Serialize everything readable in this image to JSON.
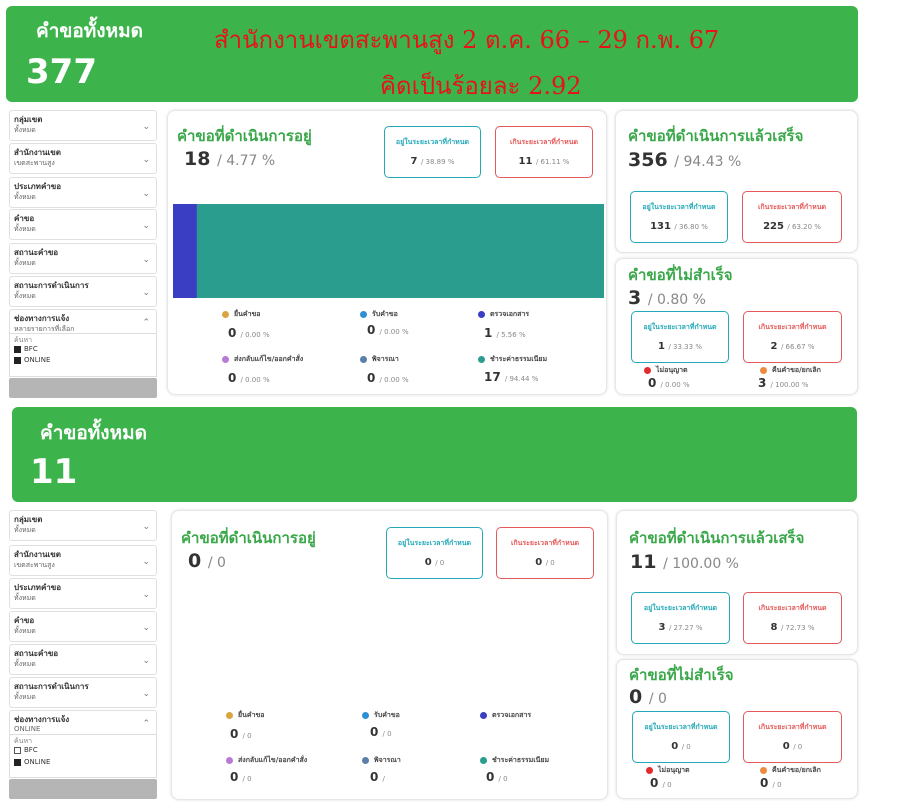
{
  "section1": {
    "banner": {
      "label": "คำขอทั้งหมด",
      "count": "377"
    },
    "headline": {
      "line1": "สำนักงานเขตสะพานสูง 2 ต.ค. 66 – 29 ก.พ. 67",
      "line2": "คิดเป็นร้อยละ 2.92"
    },
    "filters": [
      {
        "label": "กลุ่มเขต",
        "value": "ทั้งหมด"
      },
      {
        "label": "สำนักงานเขต",
        "value": "เขตสะพานสูง"
      },
      {
        "label": "ประเภทคำขอ",
        "value": "ทั้งหมด"
      },
      {
        "label": "คำขอ",
        "value": "ทั้งหมด"
      },
      {
        "label": "สถานะคำขอ",
        "value": "ทั้งหมด"
      },
      {
        "label": "สถานะการดำเนินการ",
        "value": "ทั้งหมด"
      }
    ],
    "channel": {
      "label": "ช่องทางการแจ้ง",
      "value": "หลายรายการที่เลือก",
      "search_placeholder": "ค้นหา",
      "options": [
        {
          "label": "BFC",
          "checked": true
        },
        {
          "label": "ONLINE",
          "checked": true
        }
      ]
    },
    "in_progress": {
      "title": "คำขอที่ดำเนินการอยู่",
      "count": "18",
      "pct": "/ 4.77 %",
      "kpi_in": {
        "label": "อยู่ในระยะเวลาที่กำหนด",
        "value": "7",
        "pct": "/ 38.89 %"
      },
      "kpi_over": {
        "label": "เกินระยะเวลาที่กำหนด",
        "value": "11",
        "pct": "/ 61.11 %"
      },
      "chart_data": {
        "type": "bar",
        "orientation": "horizontal-stacked",
        "segments": [
          {
            "name": "ตรวจเอกสาร",
            "value": 1,
            "color": "#3a3ec2"
          },
          {
            "name": "ชำระค่าธรรมเนียม",
            "value": 17,
            "color": "#2a9d8f"
          }
        ]
      },
      "legend": [
        {
          "label": "ยื่นคำขอ",
          "value": "0",
          "pct": "/ 0.00 %",
          "color": "#d9a441"
        },
        {
          "label": "รับคำขอ",
          "value": "0",
          "pct": "/ 0.00 %",
          "color": "#2d8fd6"
        },
        {
          "label": "ตรวจเอกสาร",
          "value": "1",
          "pct": "/ 5.56 %",
          "color": "#3a3ec2"
        },
        {
          "label": "ส่งกลับแก้ไข/ออกคำสั่ง",
          "value": "0",
          "pct": "/ 0.00 %",
          "color": "#b77bd6"
        },
        {
          "label": "พิจารณา",
          "value": "0",
          "pct": "/ 0.00 %",
          "color": "#5a7fa8"
        },
        {
          "label": "ชำระค่าธรรมเนียม",
          "value": "17",
          "pct": "/ 94.44 %",
          "color": "#2a9d8f"
        }
      ]
    },
    "done": {
      "title": "คำขอที่ดำเนินการแล้วเสร็จ",
      "count": "356",
      "pct": "/ 94.43 %",
      "kpi_in": {
        "label": "อยู่ในระยะเวลาที่กำหนด",
        "value": "131",
        "pct": "/ 36.80 %"
      },
      "kpi_over": {
        "label": "เกินระยะเวลาที่กำหนด",
        "value": "225",
        "pct": "/ 63.20 %"
      }
    },
    "failed": {
      "title": "คำขอที่ไม่สำเร็จ",
      "count": "3",
      "pct": "/ 0.80 %",
      "kpi_in": {
        "label": "อยู่ในระยะเวลาที่กำหนด",
        "value": "1",
        "pct": "/ 33.33 %"
      },
      "kpi_over": {
        "label": "เกินระยะเวลาที่กำหนด",
        "value": "2",
        "pct": "/ 66.67 %"
      },
      "legend": [
        {
          "label": "ไม่อนุญาต",
          "value": "0",
          "pct": "/ 0.00 %",
          "color": "#e32b2b"
        },
        {
          "label": "คืนคำขอ/ยกเลิก",
          "value": "3",
          "pct": "/ 100.00 %",
          "color": "#f08a3c"
        }
      ]
    }
  },
  "section2": {
    "banner": {
      "label": "คำขอทั้งหมด",
      "count": "11"
    },
    "filters": [
      {
        "label": "กลุ่มเขต",
        "value": "ทั้งหมด"
      },
      {
        "label": "สำนักงานเขต",
        "value": "เขตสะพานสูง"
      },
      {
        "label": "ประเภทคำขอ",
        "value": "ทั้งหมด"
      },
      {
        "label": "คำขอ",
        "value": "ทั้งหมด"
      },
      {
        "label": "สถานะคำขอ",
        "value": "ทั้งหมด"
      },
      {
        "label": "สถานะการดำเนินการ",
        "value": "ทั้งหมด"
      }
    ],
    "channel": {
      "label": "ช่องทางการแจ้ง",
      "value": "ONLINE",
      "search_placeholder": "ค้นหา",
      "options": [
        {
          "label": "BFC",
          "checked": false
        },
        {
          "label": "ONLINE",
          "checked": true
        }
      ]
    },
    "in_progress": {
      "title": "คำขอที่ดำเนินการอยู่",
      "count": "0",
      "pct": "/ 0",
      "kpi_in": {
        "label": "อยู่ในระยะเวลาที่กำหนด",
        "value": "0",
        "pct": "/ 0"
      },
      "kpi_over": {
        "label": "เกินระยะเวลาที่กำหนด",
        "value": "0",
        "pct": "/ 0"
      },
      "legend": [
        {
          "label": "ยื่นคำขอ",
          "value": "0",
          "pct": "/ 0",
          "color": "#d9a441"
        },
        {
          "label": "รับคำขอ",
          "value": "0",
          "pct": "/ 0",
          "color": "#2d8fd6"
        },
        {
          "label": "ตรวจเอกสาร",
          "value": "",
          "pct": "",
          "color": "#3a3ec2"
        },
        {
          "label": "ส่งกลับแก้ไข/ออกคำสั่ง",
          "value": "0",
          "pct": "/ 0",
          "color": "#b77bd6"
        },
        {
          "label": "พิจารณา",
          "value": "0",
          "pct": "/",
          "color": "#5a7fa8"
        },
        {
          "label": "ชำระค่าธรรมเนียม",
          "value": "0",
          "pct": "/ 0",
          "color": "#2a9d8f"
        }
      ]
    },
    "done": {
      "title": "คำขอที่ดำเนินการแล้วเสร็จ",
      "count": "11",
      "pct": "/ 100.00 %",
      "kpi_in": {
        "label": "อยู่ในระยะเวลาที่กำหนด",
        "value": "3",
        "pct": "/ 27.27 %"
      },
      "kpi_over": {
        "label": "เกินระยะเวลาที่กำหนด",
        "value": "8",
        "pct": "/ 72.73 %"
      }
    },
    "failed": {
      "title": "คำขอที่ไม่สำเร็จ",
      "count": "0",
      "pct": "/ 0",
      "kpi_in": {
        "label": "อยู่ในระยะเวลาที่กำหนด",
        "value": "0",
        "pct": "/ 0"
      },
      "kpi_over": {
        "label": "เกินระยะเวลาที่กำหนด",
        "value": "0",
        "pct": "/ 0"
      },
      "legend": [
        {
          "label": "ไม่อนุญาต",
          "value": "0",
          "pct": "/ 0",
          "color": "#e32b2b"
        },
        {
          "label": "คืนคำขอ/ยกเลิก",
          "value": "0",
          "pct": "/ 0",
          "color": "#f08a3c"
        }
      ]
    }
  }
}
